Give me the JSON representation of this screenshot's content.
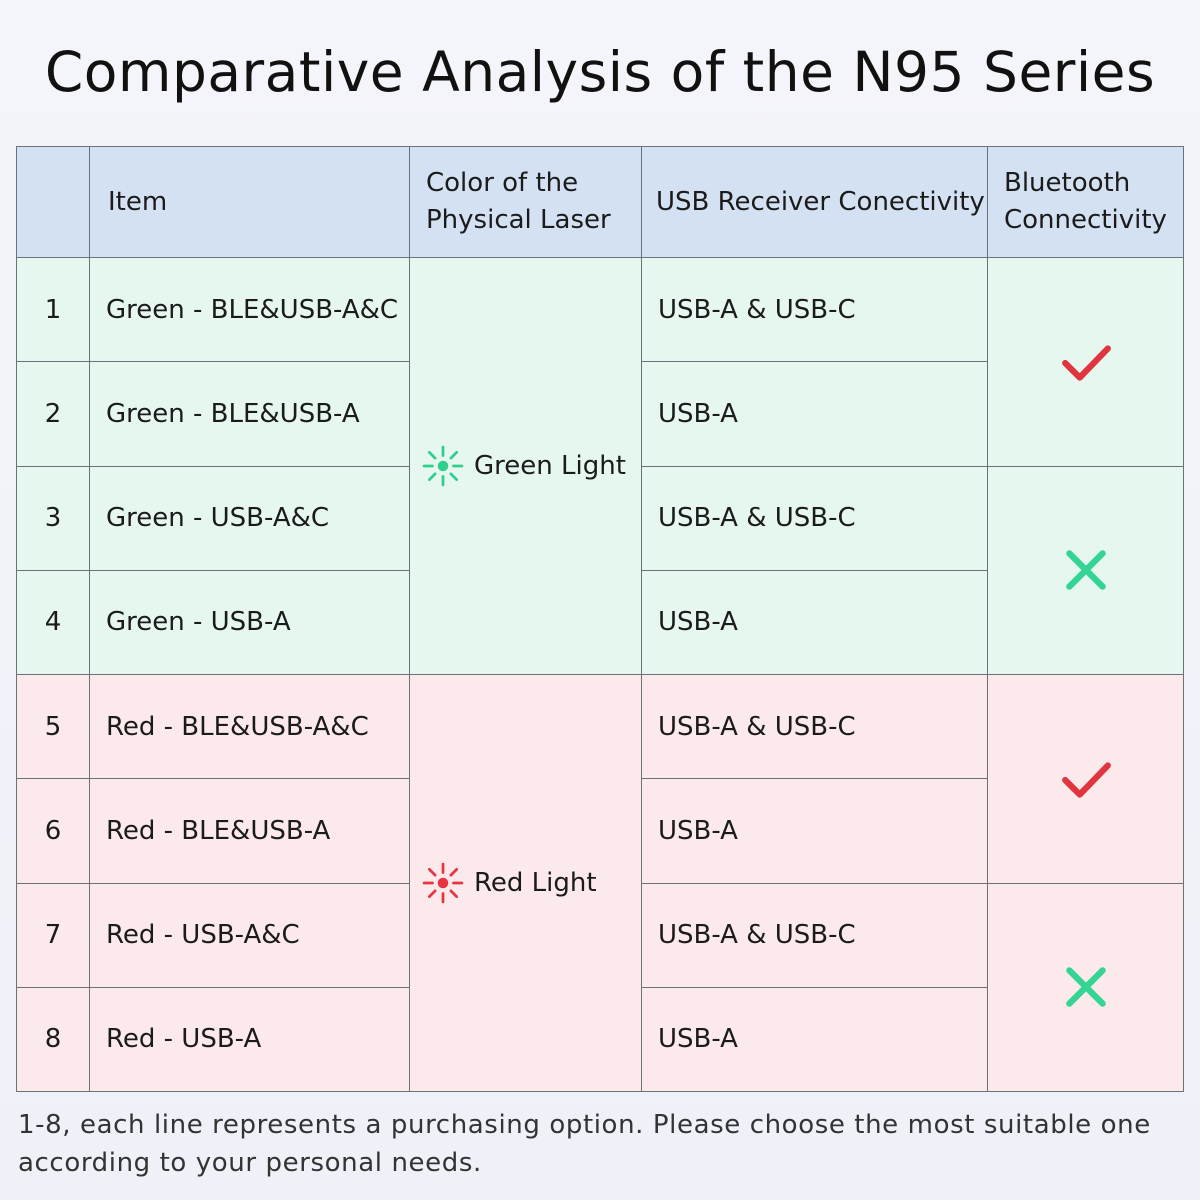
{
  "title": "Comparative Analysis of the N95 Series",
  "header": {
    "num": "",
    "item": "Item",
    "color": "Color of the Physical Laser",
    "usb": "USB Receiver Conectivity",
    "bluetooth": "Bluetooth Connectivity"
  },
  "rows": [
    {
      "num": "1",
      "name": "Green - BLE&USB-A&C",
      "usb": "USB-A & USB-C"
    },
    {
      "num": "2",
      "name": "Green - BLE&USB-A",
      "usb": "USB-A"
    },
    {
      "num": "3",
      "name": "Green - USB-A&C",
      "usb": "USB-A & USB-C"
    },
    {
      "num": "4",
      "name": "Green - USB-A",
      "usb": "USB-A"
    },
    {
      "num": "5",
      "name": "Red - BLE&USB-A&C",
      "usb": "USB-A & USB-C"
    },
    {
      "num": "6",
      "name": "Red - BLE&USB-A",
      "usb": "USB-A"
    },
    {
      "num": "7",
      "name": "Red - USB-A&C",
      "usb": "USB-A & USB-C"
    },
    {
      "num": "8",
      "name": "Red - USB-A",
      "usb": "USB-A"
    }
  ],
  "lights": {
    "green": {
      "label": "Green Light",
      "icon": "laser-burst-icon",
      "color": "#2fcf8e"
    },
    "red": {
      "label": "Red Light",
      "icon": "laser-burst-icon",
      "color": "#e8343f"
    }
  },
  "bluetooth_marks": [
    {
      "rows": "1-2",
      "value": "check-icon",
      "color": "#e0353f"
    },
    {
      "rows": "3-4",
      "value": "cross-icon",
      "color": "#33d494"
    },
    {
      "rows": "5-6",
      "value": "check-icon",
      "color": "#e0353f"
    },
    {
      "rows": "7-8",
      "value": "cross-icon",
      "color": "#33d494"
    }
  ],
  "colors": {
    "header_bg": "#d3e1f2",
    "green_row_bg": "#e6f7ef",
    "red_row_bg": "#fbe9ec"
  },
  "note": "1-8, each line represents a purchasing option. Please choose the most suitable one according to your personal needs."
}
